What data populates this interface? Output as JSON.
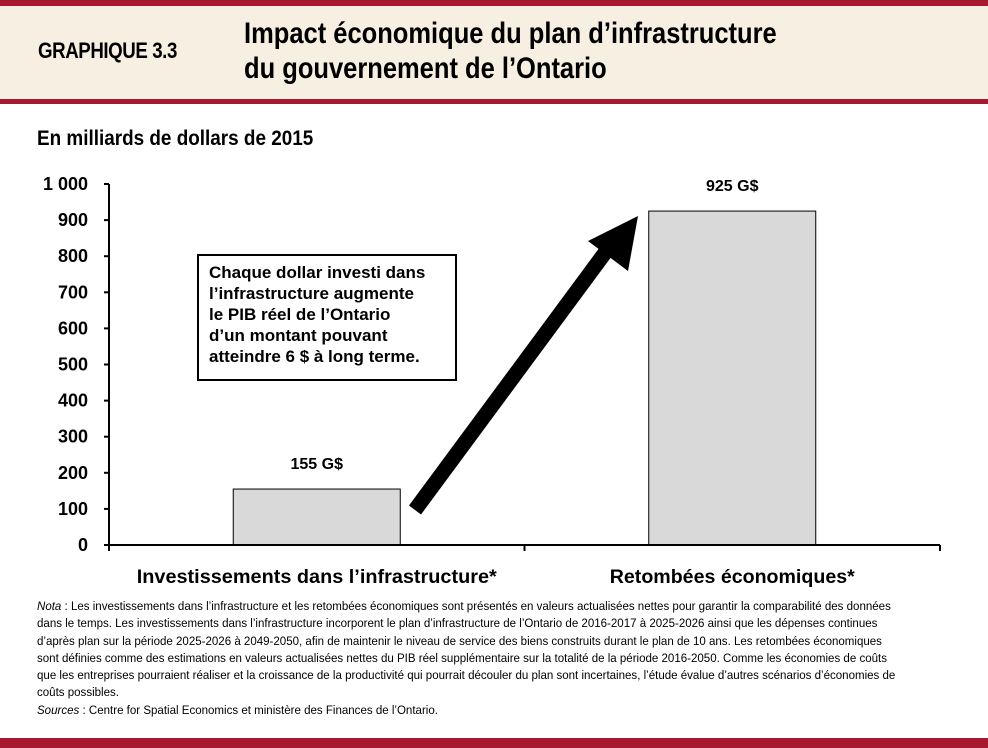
{
  "header": {
    "figure_number": "GRAPHIQUE 3.3",
    "title_lines": [
      "Impact économique du plan d’infrastructure",
      "du gouvernement de l’Ontario"
    ]
  },
  "chart_data": {
    "type": "bar",
    "title": "Impact économique du plan d’infrastructure du gouvernement de l’Ontario",
    "ylabel": "En milliards de dollars de 2015",
    "xlabel": "",
    "categories": [
      "Investissements dans l’infrastructure*",
      "Retombées économiques*"
    ],
    "values": [
      155,
      925
    ],
    "data_labels": [
      "155 G$",
      "925 G$"
    ],
    "ylim": [
      0,
      1000
    ],
    "yticks": [
      0,
      100,
      200,
      300,
      400,
      500,
      600,
      700,
      800,
      900,
      1000
    ],
    "ytick_labels": [
      "0",
      "100",
      "200",
      "300",
      "400",
      "500",
      "600",
      "700",
      "800",
      "900",
      "1 000"
    ],
    "grid": false,
    "bar_color": "#d9d9d9",
    "annotation_lines": [
      "Chaque dollar investi dans",
      "l’infrastructure augmente",
      "le PIB réel de l’Ontario",
      "d’un montant pouvant",
      "atteindre 6 $ à long terme."
    ],
    "arrow": "from first bar up to second bar"
  },
  "notes": {
    "nota_label": "Nota",
    "nota_text": " : Les investissements dans l’infrastructure et les retombées économiques sont présentés en valeurs actualisées nettes pour garantir la comparabilité des données dans le temps. Les investissements dans l’infrastructure incorporent le plan d’infrastructure de l’Ontario de 2016-2017 à 2025-2026 ainsi que les dépenses continues d’après plan sur la période 2025-2026 à 2049-2050, afin de maintenir le niveau de service des biens construits durant le plan de 10 ans. Les retombées économiques sont définies comme des estimations en valeurs actualisées nettes du PIB réel supplémentaire sur la totalité de la période 2016-2050. Comme les économies de coûts que les entreprises pourraient réaliser et la croissance de la productivité qui pourrait découler du plan sont incertaines, l’étude évalue d’autres scénarios d’économies de coûts possibles.",
    "sources_label": "Sources",
    "sources_text": " : Centre for Spatial Economics et ministère des Finances de l’Ontario."
  },
  "colors": {
    "brand": "#a6192e",
    "header_bg": "#f7efe2"
  }
}
